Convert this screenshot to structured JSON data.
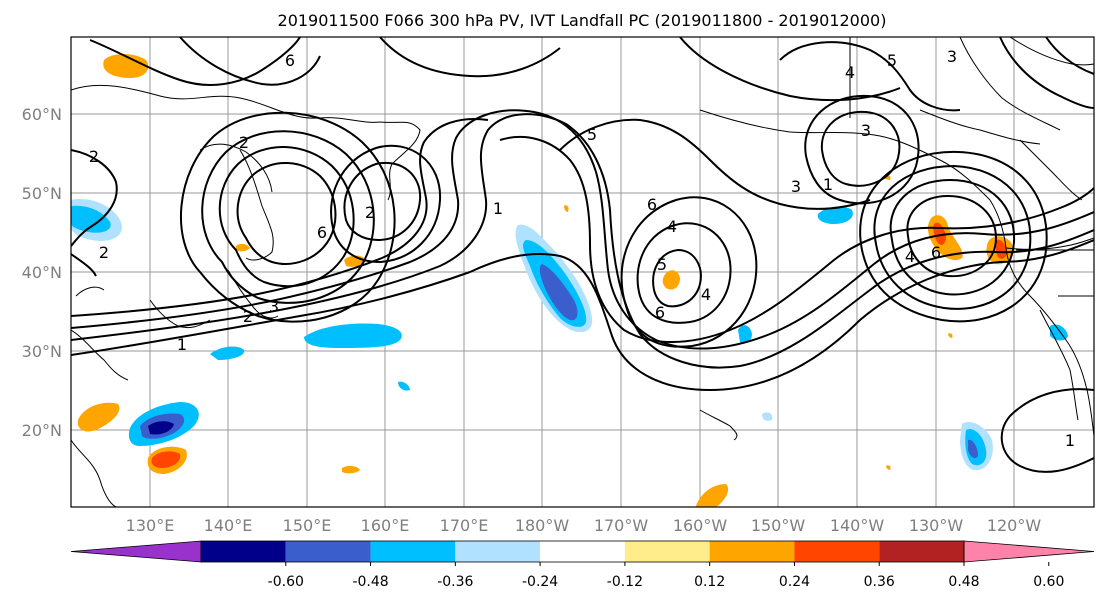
{
  "title": "2019011500 F066 300 hPa PV, IVT Landfall PC (2019011800 - 2019012000)",
  "lat_labels": [
    "60°N",
    "50°N",
    "40°N",
    "30°N",
    "20°N"
  ],
  "lon_labels": [
    "130°E",
    "140°E",
    "150°E",
    "160°E",
    "170°E",
    "180°W",
    "170°W",
    "160°W",
    "150°W",
    "140°W",
    "130°W",
    "120°W"
  ],
  "colorbar": {
    "colors": [
      "#9932cc",
      "#00008b",
      "#3a5fcd",
      "#00bfff",
      "#b0e2ff",
      "#ffffff",
      "#ffec8b",
      "#ffa500",
      "#ff4500",
      "#b22222",
      "#ff82ab"
    ],
    "tick_labels": [
      "-0.60",
      "-0.48",
      "-0.36",
      "-0.24",
      "-0.12",
      "0.12",
      "0.24",
      "0.36",
      "0.48",
      "0.60"
    ]
  },
  "contour_labels": [
    {
      "text": "6"
    },
    {
      "text": "2"
    },
    {
      "text": "2"
    },
    {
      "text": "2"
    },
    {
      "text": "6"
    },
    {
      "text": "2"
    },
    {
      "text": "5"
    },
    {
      "text": "1"
    },
    {
      "text": "6"
    },
    {
      "text": "4"
    },
    {
      "text": "5"
    },
    {
      "text": "6"
    },
    {
      "text": "4"
    },
    {
      "text": "3"
    },
    {
      "text": "1"
    },
    {
      "text": "3"
    },
    {
      "text": "4"
    },
    {
      "text": "5"
    },
    {
      "text": "3"
    },
    {
      "text": "4"
    },
    {
      "text": "6"
    },
    {
      "text": "3"
    },
    {
      "text": "2"
    },
    {
      "text": "1"
    },
    {
      "text": "1"
    }
  ]
}
